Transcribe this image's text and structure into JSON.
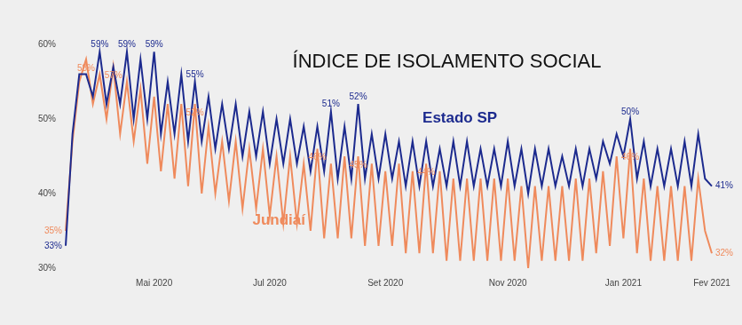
{
  "chart_data": {
    "type": "line",
    "title": "ÍNDICE DE ISOLAMENTO SOCIAL",
    "categories": [
      null,
      null,
      null,
      null,
      null,
      null,
      null,
      null,
      null,
      null,
      null,
      null,
      null,
      "Mai 2020",
      null,
      null,
      null,
      null,
      null,
      null,
      null,
      null,
      null,
      null,
      null,
      null,
      null,
      null,
      null,
      null,
      "Jul 2020",
      null,
      null,
      null,
      null,
      null,
      null,
      null,
      null,
      null,
      null,
      null,
      null,
      null,
      null,
      null,
      null,
      "Set 2020",
      null,
      null,
      null,
      null,
      null,
      null,
      null,
      null,
      null,
      null,
      null,
      null,
      null,
      null,
      null,
      null,
      null,
      "Nov 2020",
      null,
      null,
      null,
      null,
      null,
      null,
      null,
      null,
      null,
      null,
      null,
      null,
      null,
      null,
      null,
      null,
      "Jan 2021",
      null,
      null,
      null,
      null,
      null,
      null,
      null,
      null,
      null,
      null,
      null,
      null,
      "Fev 2021"
    ],
    "series": [
      {
        "name": "Estado SP",
        "color": "#1c2a8e",
        "values": [
          33,
          48,
          56,
          56,
          53,
          59,
          52,
          57,
          52,
          59,
          50,
          58,
          50,
          59,
          48,
          55,
          48,
          56,
          47,
          55,
          47,
          53,
          46,
          52,
          46,
          52,
          45,
          51,
          45,
          51,
          44,
          50,
          44,
          50,
          44,
          49,
          43,
          49,
          43,
          51,
          42,
          49,
          42,
          52,
          42,
          48,
          42,
          48,
          42,
          47,
          41,
          47,
          41,
          47,
          41,
          46,
          41,
          47,
          41,
          47,
          41,
          46,
          41,
          46,
          41,
          47,
          41,
          46,
          40,
          46,
          41,
          46,
          41,
          45,
          41,
          46,
          41,
          46,
          42,
          47,
          44,
          48,
          45,
          50,
          42,
          47,
          41,
          46,
          41,
          46,
          41,
          47,
          41,
          48,
          42,
          41
        ],
        "value_labels": [
          "33%",
          null,
          null,
          null,
          null,
          "59%",
          null,
          null,
          null,
          "59%",
          null,
          null,
          null,
          "59%",
          null,
          null,
          null,
          null,
          null,
          "55%",
          null,
          null,
          null,
          null,
          null,
          null,
          null,
          null,
          null,
          null,
          null,
          null,
          null,
          null,
          null,
          null,
          null,
          null,
          null,
          "51%",
          null,
          null,
          null,
          "52%",
          null,
          null,
          null,
          null,
          null,
          null,
          null,
          null,
          null,
          null,
          null,
          null,
          null,
          null,
          null,
          null,
          null,
          null,
          null,
          null,
          null,
          null,
          null,
          null,
          null,
          null,
          null,
          null,
          null,
          null,
          null,
          null,
          null,
          null,
          null,
          null,
          null,
          null,
          null,
          "50%",
          null,
          null,
          null,
          null,
          null,
          null,
          null,
          null,
          null,
          null,
          null,
          "41%"
        ]
      },
      {
        "name": "Jundiaí",
        "color": "#ef8a5c",
        "values": [
          35,
          47,
          55,
          58,
          52,
          56,
          50,
          57,
          48,
          55,
          47,
          54,
          44,
          53,
          43,
          52,
          42,
          52,
          41,
          52,
          40,
          49,
          40,
          47,
          39,
          47,
          38,
          46,
          38,
          46,
          37,
          45,
          36,
          45,
          36,
          44,
          35,
          46,
          34,
          44,
          34,
          45,
          34,
          45,
          33,
          44,
          33,
          43,
          33,
          44,
          32,
          43,
          32,
          44,
          32,
          43,
          31,
          42,
          31,
          42,
          31,
          42,
          31,
          42,
          31,
          42,
          31,
          41,
          30,
          41,
          31,
          41,
          31,
          41,
          31,
          42,
          31,
          42,
          32,
          43,
          33,
          45,
          34,
          46,
          32,
          42,
          31,
          41,
          31,
          41,
          31,
          41,
          31,
          42,
          35,
          32
        ],
        "value_labels": [
          "35%",
          null,
          null,
          "58%",
          null,
          null,
          null,
          "57%",
          null,
          null,
          null,
          null,
          null,
          null,
          null,
          null,
          null,
          null,
          null,
          "52%",
          null,
          null,
          null,
          null,
          null,
          null,
          null,
          null,
          null,
          null,
          null,
          null,
          null,
          null,
          null,
          null,
          null,
          "46%",
          null,
          null,
          null,
          null,
          null,
          "45%",
          null,
          null,
          null,
          null,
          null,
          null,
          null,
          null,
          null,
          "44%",
          null,
          null,
          null,
          null,
          null,
          null,
          null,
          null,
          null,
          null,
          null,
          null,
          null,
          null,
          null,
          null,
          null,
          null,
          null,
          null,
          null,
          null,
          null,
          null,
          null,
          null,
          null,
          null,
          null,
          "46%",
          null,
          null,
          null,
          null,
          null,
          null,
          null,
          null,
          null,
          null,
          null,
          "32%"
        ]
      }
    ],
    "ylim": [
      30,
      60
    ],
    "yticks": [
      {
        "value": 30,
        "label": "30%"
      },
      {
        "value": 40,
        "label": "40%"
      },
      {
        "value": 50,
        "label": "50%"
      },
      {
        "value": 60,
        "label": "60%"
      }
    ],
    "grid": false,
    "data_labels": true
  }
}
